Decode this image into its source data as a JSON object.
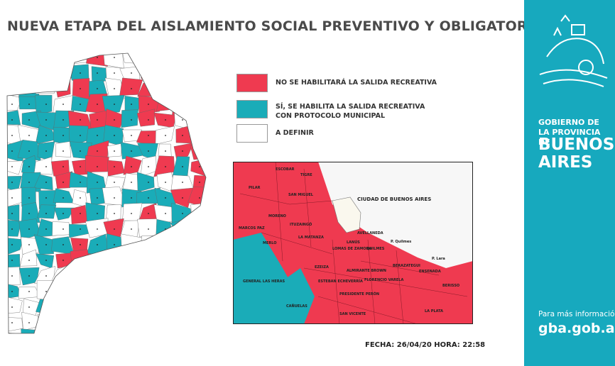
{
  "header": {
    "title": "NUEVA ETAPA DEL AISLAMIENTO SOCIAL PREVENTIVO Y OBLIGATORIO"
  },
  "legend": [
    {
      "label": "NO SE HABILITARÁ LA SALIDA RECREATIVA",
      "color": "#ef3a50"
    },
    {
      "label": "SÍ, SE HABILITA LA SALIDA RECREATIVA CON PROTOCOLO MUNICIPAL",
      "color": "#1aacb8"
    },
    {
      "label": "A DEFINIR",
      "color": "#ffffff"
    }
  ],
  "inset": {
    "city": "CIUDAD DE BUENOS AIRES",
    "labels": [
      "PILAR",
      "TIGRE",
      "ESCOBAR",
      "MORENO",
      "MERLO",
      "LA MATANZA",
      "SAN MIGUEL",
      "ITUZAINGÓ",
      "AVELLANEDA",
      "LANÚS",
      "QUILMES",
      "LOMAS DE ZAMORA",
      "BERAZATEGUI",
      "ENSENADA",
      "BERISSO",
      "LA PLATA",
      "EZEIZA",
      "ALMIRANTE BROWN",
      "FLORENCIO VARELA",
      "ESTEBAN ECHEVERRÍA",
      "PRESIDENTE PERÓN",
      "SAN VICENTE",
      "CAÑUELAS",
      "MARCOS PAZ",
      "GENERAL LAS HERAS",
      "P. Quilmes",
      "P. Lara"
    ]
  },
  "footer": {
    "date": "FECHA: 26/04/20 HORA: 22:58"
  },
  "sidebar": {
    "org": "GOBIERNO DE LA PROVINCIA DE",
    "name": "BUENOS AIRES",
    "info": "Para más información",
    "url": "gba.gob.ar"
  }
}
